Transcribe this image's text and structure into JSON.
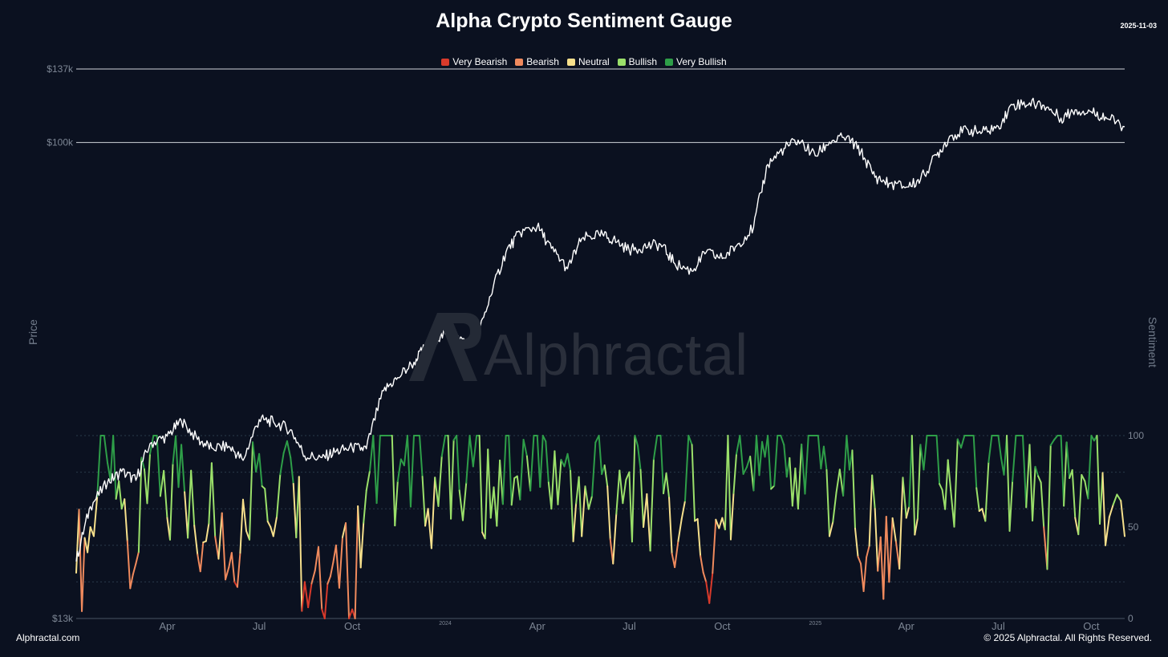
{
  "title": "Alpha Crypto Sentiment Gauge",
  "date": "2025-11-03",
  "legend": {
    "items": [
      {
        "label": "Very Bearish",
        "color": "#d93a2b"
      },
      {
        "label": "Bearish",
        "color": "#f08a5d"
      },
      {
        "label": "Neutral",
        "color": "#f7e08c"
      },
      {
        "label": "Bullish",
        "color": "#9be06a"
      },
      {
        "label": "Very Bullish",
        "color": "#2e9e48"
      }
    ]
  },
  "axes": {
    "left_label": "Price",
    "right_label": "Sentiment"
  },
  "watermark": "Alphractal",
  "footer": {
    "left": "Alphractal.com",
    "right": "© 2025 Alphractal. All Rights Reserved."
  },
  "chart_data": {
    "type": "line",
    "title": "Alpha Crypto Sentiment Gauge",
    "ylabel": "Price",
    "y2label": "Sentiment",
    "y_ticks": [
      "$13k",
      "$100k",
      "$137k"
    ],
    "y2_ticks": [
      "0",
      "50",
      "100"
    ],
    "y2lim": [
      0,
      100
    ],
    "x_ticks": [
      "Apr",
      "Jul",
      "Oct",
      "2024",
      "Apr",
      "Jul",
      "Oct",
      "2025",
      "Apr",
      "Jul",
      "Oct"
    ],
    "x_tick_dates": [
      "2023-04-01",
      "2023-07-01",
      "2023-10-01",
      "2024-01-01",
      "2024-04-01",
      "2024-07-01",
      "2024-10-01",
      "2025-01-01",
      "2025-04-01",
      "2025-07-01",
      "2025-10-01"
    ],
    "series": [
      {
        "name": "Price",
        "color": "#ffffff",
        "x": [
          "2023-01-01",
          "2023-01-15",
          "2023-02-01",
          "2023-02-15",
          "2023-03-01",
          "2023-03-15",
          "2023-04-01",
          "2023-04-15",
          "2023-05-01",
          "2023-05-15",
          "2023-06-01",
          "2023-06-15",
          "2023-07-01",
          "2023-07-15",
          "2023-08-01",
          "2023-08-15",
          "2023-09-01",
          "2023-09-15",
          "2023-10-01",
          "2023-10-15",
          "2023-11-01",
          "2023-11-15",
          "2023-12-01",
          "2023-12-15",
          "2024-01-01",
          "2024-01-15",
          "2024-02-01",
          "2024-02-15",
          "2024-03-01",
          "2024-03-15",
          "2024-04-01",
          "2024-04-15",
          "2024-05-01",
          "2024-05-15",
          "2024-06-01",
          "2024-06-15",
          "2024-07-01",
          "2024-07-15",
          "2024-08-01",
          "2024-08-15",
          "2024-09-01",
          "2024-09-15",
          "2024-10-01",
          "2024-10-15",
          "2024-11-01",
          "2024-11-15",
          "2024-12-01",
          "2024-12-15",
          "2025-01-01",
          "2025-01-15",
          "2025-02-01",
          "2025-02-15",
          "2025-03-01",
          "2025-03-15",
          "2025-04-01",
          "2025-04-15",
          "2025-05-01",
          "2025-05-15",
          "2025-06-01",
          "2025-06-15",
          "2025-07-01",
          "2025-07-15",
          "2025-08-01",
          "2025-08-15",
          "2025-09-01",
          "2025-09-15",
          "2025-10-01",
          "2025-10-15",
          "2025-11-03"
        ],
        "values": [
          16600,
          21000,
          23300,
          24400,
          23500,
          27500,
          28400,
          30300,
          28000,
          27000,
          27200,
          25600,
          30500,
          30200,
          29200,
          26100,
          25900,
          26600,
          27000,
          26900,
          34500,
          36500,
          39000,
          42300,
          44000,
          43000,
          42600,
          51800,
          62500,
          68000,
          69700,
          63500,
          58200,
          66200,
          67500,
          66000,
          63000,
          64000,
          64600,
          59500,
          57600,
          62400,
          60800,
          64200,
          69500,
          91000,
          97500,
          101000,
          94400,
          100200,
          102400,
          96000,
          86100,
          84000,
          82600,
          85200,
          94600,
          103000,
          105500,
          104500,
          107100,
          117500,
          118500,
          117300,
          111000,
          115000,
          114000,
          111500,
          107000
        ]
      },
      {
        "name": "Sentiment",
        "x": [
          "2023-01-01",
          "2023-01-15",
          "2023-02-01",
          "2023-02-15",
          "2023-03-01",
          "2023-03-15",
          "2023-04-01",
          "2023-04-15",
          "2023-05-01",
          "2023-05-15",
          "2023-06-01",
          "2023-06-15",
          "2023-07-01",
          "2023-07-15",
          "2023-08-01",
          "2023-08-15",
          "2023-09-01",
          "2023-09-15",
          "2023-10-01",
          "2023-10-15",
          "2023-11-01",
          "2023-11-15",
          "2023-12-01",
          "2023-12-15",
          "2024-01-01",
          "2024-01-15",
          "2024-02-01",
          "2024-02-15",
          "2024-03-01",
          "2024-03-15",
          "2024-04-01",
          "2024-04-15",
          "2024-05-01",
          "2024-05-15",
          "2024-06-01",
          "2024-06-15",
          "2024-07-01",
          "2024-07-15",
          "2024-08-01",
          "2024-08-15",
          "2024-09-01",
          "2024-09-15",
          "2024-10-01",
          "2024-10-15",
          "2024-11-01",
          "2024-11-15",
          "2024-12-01",
          "2024-12-15",
          "2025-01-01",
          "2025-01-15",
          "2025-02-01",
          "2025-02-15",
          "2025-03-01",
          "2025-03-15",
          "2025-04-01",
          "2025-04-15",
          "2025-05-01",
          "2025-05-15",
          "2025-06-01",
          "2025-06-15",
          "2025-07-01",
          "2025-07-15",
          "2025-08-01",
          "2025-08-15",
          "2025-09-01",
          "2025-09-15",
          "2025-10-01",
          "2025-10-15",
          "2025-11-03"
        ],
        "values": [
          25,
          50,
          85,
          60,
          30,
          90,
          55,
          95,
          35,
          85,
          28,
          65,
          90,
          45,
          88,
          20,
          5,
          40,
          5,
          70,
          100,
          75,
          100,
          60,
          100,
          70,
          100,
          55,
          100,
          65,
          100,
          60,
          90,
          45,
          100,
          30,
          80,
          50,
          100,
          28,
          95,
          20,
          55,
          90,
          70,
          100,
          95,
          60,
          100,
          45,
          100,
          30,
          60,
          20,
          55,
          95,
          100,
          70,
          100,
          60,
          100,
          75,
          95,
          50,
          100,
          55,
          100,
          40,
          45
        ]
      }
    ]
  }
}
